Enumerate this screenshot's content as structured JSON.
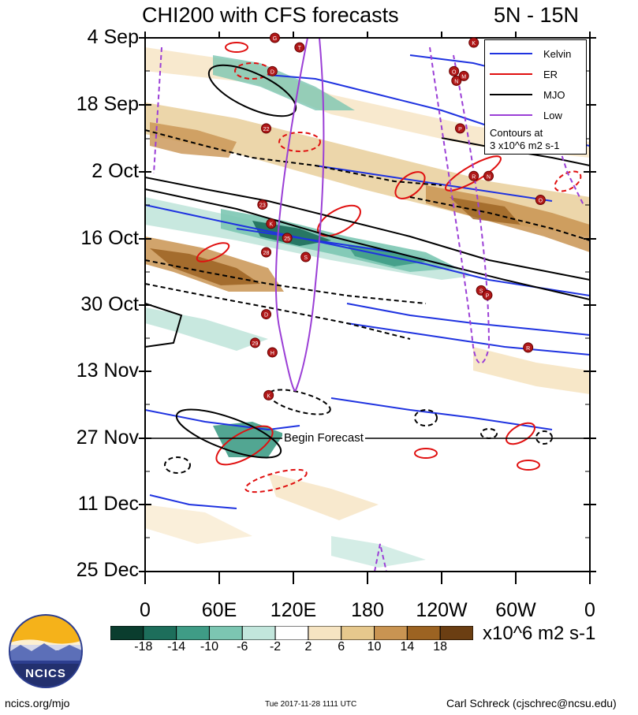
{
  "title": "CHI200 with CFS forecasts",
  "region": "5N - 15N",
  "chart_data": {
    "type": "heatmap",
    "title": "CHI200 with CFS forecasts",
    "subtitle": "5N - 15N",
    "y_ticks": [
      "4 Sep",
      "18 Sep",
      "2 Oct",
      "16 Oct",
      "30 Oct",
      "13 Nov",
      "27 Nov",
      "11 Dec",
      "25 Dec"
    ],
    "x_ticks": [
      "0",
      "60E",
      "120E",
      "180",
      "120W",
      "60W",
      "0"
    ],
    "x_range": [
      0,
      360
    ],
    "y_range": [
      "4 Sep",
      "25 Dec"
    ],
    "colorbar": {
      "levels": [
        "-18",
        "-14",
        "-10",
        "-6",
        "-2",
        "2",
        "6",
        "10",
        "14",
        "18"
      ],
      "colors": [
        "#0a3d2e",
        "#1d6e5b",
        "#3f9c86",
        "#7cc6b2",
        "#c2e6dc",
        "#ffffff",
        "#f6e4c2",
        "#e6c88d",
        "#c99452",
        "#9c6322",
        "#6b3e12"
      ],
      "units": "x10^6 m2 s-1"
    },
    "annotation": "Begin Forecast",
    "forecast_start": "27 Nov",
    "legend": {
      "position": "top-right",
      "entries": [
        {
          "label": "Kelvin",
          "color": "#1f33e0"
        },
        {
          "label": "ER",
          "color": "#e01010"
        },
        {
          "label": "MJO",
          "color": "#000000"
        },
        {
          "label": "Low",
          "color": "#9b3fd6"
        }
      ],
      "note_line1": "Contours at",
      "note_line2": "3 x10^6 m2 s-1"
    },
    "storm_markers": [
      {
        "label": "G",
        "lon": 105,
        "date": "4 Sep"
      },
      {
        "label": "T",
        "lon": 125,
        "date": "6 Sep"
      },
      {
        "label": "D",
        "lon": 103,
        "date": "11 Sep"
      },
      {
        "label": "22",
        "lon": 98,
        "date": "23 Sep"
      },
      {
        "label": "23",
        "lon": 95,
        "date": "9 Oct"
      },
      {
        "label": "K",
        "lon": 102,
        "date": "13 Oct"
      },
      {
        "label": "25",
        "lon": 115,
        "date": "16 Oct"
      },
      {
        "label": "28",
        "lon": 98,
        "date": "19 Oct"
      },
      {
        "label": "S",
        "lon": 130,
        "date": "20 Oct"
      },
      {
        "label": "D",
        "lon": 98,
        "date": "1 Nov"
      },
      {
        "label": "29",
        "lon": 89,
        "date": "7 Nov"
      },
      {
        "label": "H",
        "lon": 103,
        "date": "9 Nov"
      },
      {
        "label": "K",
        "lon": 100,
        "date": "18 Nov"
      },
      {
        "label": "K",
        "lon": 266,
        "date": "5 Sep"
      },
      {
        "label": "O",
        "lon": 250,
        "date": "11 Sep"
      },
      {
        "label": "N",
        "lon": 252,
        "date": "13 Sep"
      },
      {
        "label": "M",
        "lon": 258,
        "date": "12 Sep"
      },
      {
        "label": "P",
        "lon": 255,
        "date": "23 Sep"
      },
      {
        "label": "R",
        "lon": 266,
        "date": "3 Oct"
      },
      {
        "label": "N",
        "lon": 278,
        "date": "3 Oct"
      },
      {
        "label": "O",
        "lon": 320,
        "date": "8 Oct"
      },
      {
        "label": "S",
        "lon": 272,
        "date": "27 Oct"
      },
      {
        "label": "P",
        "lon": 277,
        "date": "28 Oct"
      },
      {
        "label": "R",
        "lon": 310,
        "date": "8 Nov"
      }
    ]
  },
  "logo": {
    "text": "NCICS"
  },
  "footer": {
    "left": "ncics.org/mjo",
    "center": "Tue 2017-11-28 1111 UTC",
    "right": "Carl Schreck (cjschrec@ncsu.edu)"
  }
}
